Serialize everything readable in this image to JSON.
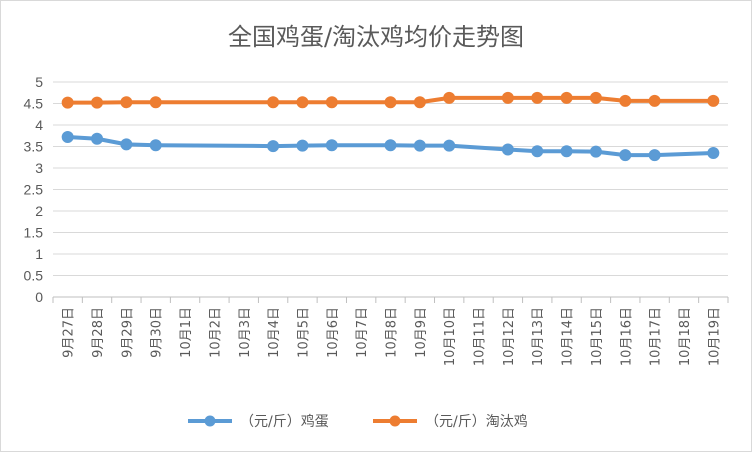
{
  "chart_data": {
    "type": "line",
    "title": "全国鸡蛋/淘汰鸡均价走势图",
    "xlabel": "",
    "ylabel": "",
    "ylim": [
      0,
      5
    ],
    "yticks": [
      "0",
      "0.5",
      "1",
      "1.5",
      "2",
      "2.5",
      "3",
      "3.5",
      "4",
      "4.5",
      "5"
    ],
    "categories": [
      "9月27日",
      "9月28日",
      "9月29日",
      "9月30日",
      "10月1日",
      "10月2日",
      "10月3日",
      "10月4日",
      "10月5日",
      "10月6日",
      "10月7日",
      "10月8日",
      "10月9日",
      "10月10日",
      "10月11日",
      "10月12日",
      "10月13日",
      "10月14日",
      "10月15日",
      "10月16日",
      "10月17日",
      "10月18日",
      "10月19日"
    ],
    "grid": true,
    "legend_position": "bottom",
    "series": [
      {
        "name": "（元/斤）鸡蛋",
        "color": "#5b9bd5",
        "values": [
          3.72,
          3.68,
          3.55,
          3.53,
          null,
          null,
          null,
          3.51,
          3.52,
          3.53,
          null,
          3.53,
          3.52,
          3.52,
          null,
          3.43,
          3.39,
          3.39,
          3.38,
          3.3,
          3.3,
          null,
          3.35
        ]
      },
      {
        "name": "（元/斤）淘汰鸡",
        "color": "#ed7d31",
        "values": [
          4.52,
          4.52,
          4.53,
          4.53,
          null,
          null,
          null,
          4.53,
          4.53,
          4.53,
          null,
          4.53,
          4.53,
          4.63,
          null,
          4.63,
          4.63,
          4.63,
          4.63,
          4.56,
          4.56,
          null,
          4.56
        ]
      }
    ]
  }
}
